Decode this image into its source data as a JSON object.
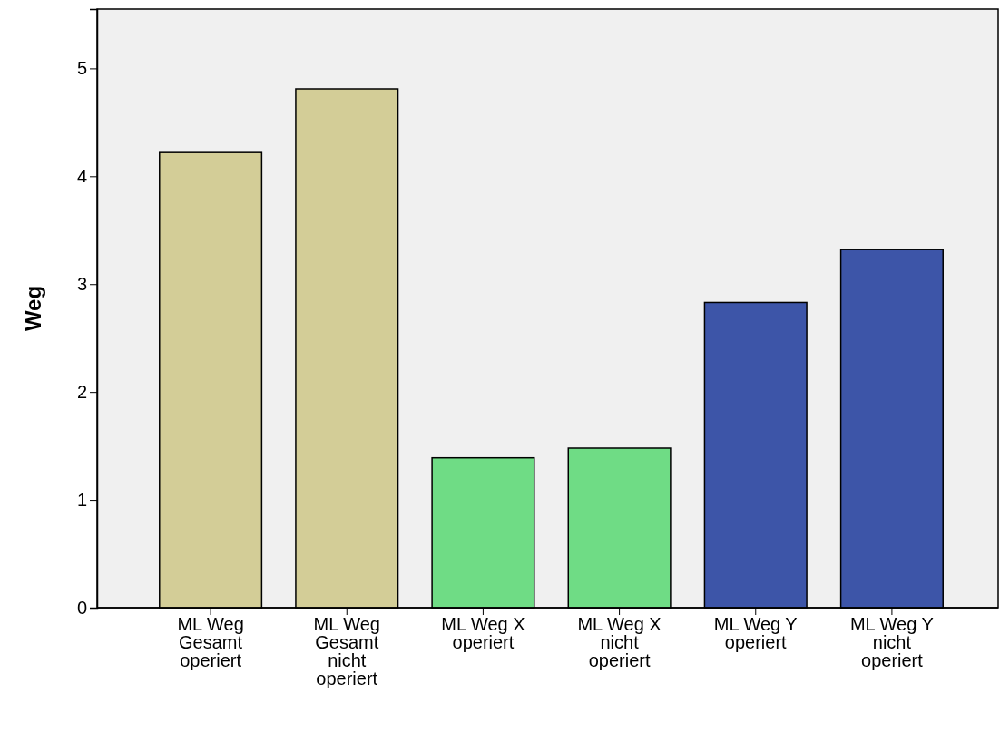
{
  "chart_data": {
    "type": "bar",
    "ylabel": "Weg",
    "categories": [
      "ML Weg Gesamt operiert",
      "ML Weg Gesamt nicht operiert",
      "ML Weg X operiert",
      "ML Weg X nicht operiert",
      "ML Weg Y operiert",
      "ML Weg Y nicht operiert"
    ],
    "values": [
      4.22,
      4.81,
      1.39,
      1.48,
      2.83,
      3.32
    ],
    "colors": [
      "#d3cd97",
      "#d3cd97",
      "#6fdc85",
      "#6fdc85",
      "#3d55a8",
      "#3d55a8"
    ],
    "ylim": [
      0,
      5.55
    ],
    "yticks": [
      0,
      1,
      2,
      3,
      4,
      5
    ],
    "grid": false
  }
}
